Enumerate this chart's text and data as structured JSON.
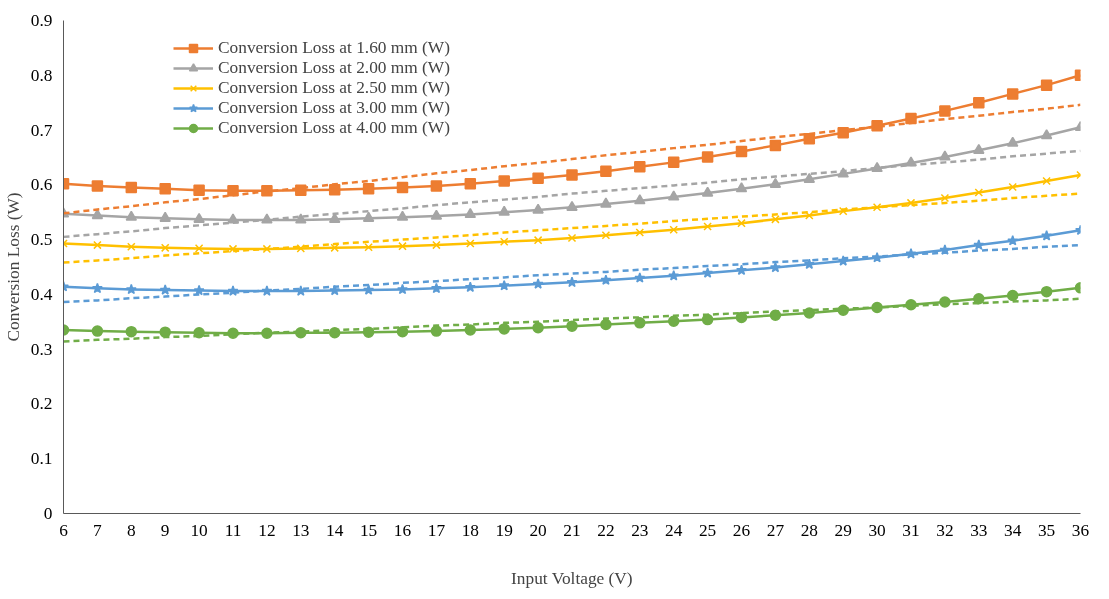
{
  "chart_data": {
    "type": "line",
    "xlabel": "Input Voltage (V)",
    "ylabel": "Conversion Loss (W)",
    "x": [
      6,
      7,
      8,
      9,
      10,
      11,
      12,
      13,
      14,
      15,
      16,
      17,
      18,
      19,
      20,
      21,
      22,
      23,
      24,
      25,
      26,
      27,
      28,
      29,
      30,
      31,
      32,
      33,
      34,
      35,
      36
    ],
    "xlim": [
      6,
      36
    ],
    "xticks": [
      6,
      7,
      8,
      9,
      10,
      11,
      12,
      13,
      14,
      15,
      16,
      17,
      18,
      19,
      20,
      21,
      22,
      23,
      24,
      25,
      26,
      27,
      28,
      29,
      30,
      31,
      32,
      33,
      34,
      35,
      36
    ],
    "ylim": [
      0,
      0.9
    ],
    "yticks": [
      0,
      0.1,
      0.2,
      0.3,
      0.4,
      0.5,
      0.6,
      0.7,
      0.8,
      0.9
    ],
    "grid": false,
    "legend": "top left",
    "series": [
      {
        "name": "Conversion Loss at 1.60 mm (W)",
        "color": "#ed7d31",
        "marker": "square",
        "line_style": "solid",
        "values": [
          0.602,
          0.598,
          0.595,
          0.593,
          0.59,
          0.589,
          0.589,
          0.59,
          0.591,
          0.593,
          0.595,
          0.598,
          0.602,
          0.607,
          0.612,
          0.618,
          0.625,
          0.633,
          0.641,
          0.651,
          0.661,
          0.672,
          0.684,
          0.695,
          0.708,
          0.721,
          0.735,
          0.75,
          0.766,
          0.782,
          0.8
        ]
      },
      {
        "name": "Conversion Loss at 2.00 mm (W)",
        "color": "#a5a5a5",
        "marker": "triangle",
        "line_style": "solid",
        "values": [
          0.547,
          0.544,
          0.541,
          0.539,
          0.537,
          0.536,
          0.536,
          0.536,
          0.537,
          0.539,
          0.541,
          0.543,
          0.546,
          0.55,
          0.554,
          0.559,
          0.565,
          0.571,
          0.578,
          0.585,
          0.593,
          0.601,
          0.61,
          0.62,
          0.63,
          0.64,
          0.651,
          0.663,
          0.676,
          0.69,
          0.705
        ]
      },
      {
        "name": "Conversion Loss at 2.50 mm (W)",
        "color": "#ffc000",
        "marker": "cross",
        "line_style": "solid",
        "values": [
          0.493,
          0.49,
          0.487,
          0.485,
          0.484,
          0.483,
          0.483,
          0.484,
          0.485,
          0.486,
          0.488,
          0.49,
          0.493,
          0.496,
          0.499,
          0.503,
          0.508,
          0.513,
          0.518,
          0.524,
          0.53,
          0.537,
          0.544,
          0.552,
          0.559,
          0.567,
          0.576,
          0.586,
          0.596,
          0.607,
          0.618
        ]
      },
      {
        "name": "Conversion Loss at 3.00 mm (W)",
        "color": "#5b9bd5",
        "marker": "star",
        "line_style": "solid",
        "values": [
          0.414,
          0.411,
          0.409,
          0.408,
          0.407,
          0.406,
          0.406,
          0.406,
          0.407,
          0.408,
          0.409,
          0.411,
          0.413,
          0.416,
          0.419,
          0.422,
          0.426,
          0.43,
          0.434,
          0.439,
          0.444,
          0.449,
          0.455,
          0.461,
          0.467,
          0.474,
          0.481,
          0.49,
          0.498,
          0.507,
          0.517
        ]
      },
      {
        "name": "Conversion Loss at 4.00 mm (W)",
        "color": "#70ad47",
        "marker": "circle",
        "line_style": "solid",
        "values": [
          0.335,
          0.333,
          0.332,
          0.331,
          0.33,
          0.329,
          0.329,
          0.33,
          0.33,
          0.331,
          0.332,
          0.333,
          0.335,
          0.337,
          0.339,
          0.342,
          0.345,
          0.348,
          0.351,
          0.354,
          0.358,
          0.362,
          0.366,
          0.371,
          0.376,
          0.381,
          0.386,
          0.392,
          0.398,
          0.405,
          0.412
        ]
      },
      {
        "color": "#ed7d31",
        "marker": "none",
        "line_style": "dashed",
        "values": [
          0.548,
          0.555,
          0.561,
          0.568,
          0.574,
          0.581,
          0.588,
          0.594,
          0.601,
          0.607,
          0.614,
          0.621,
          0.627,
          0.634,
          0.64,
          0.647,
          0.654,
          0.66,
          0.667,
          0.673,
          0.68,
          0.687,
          0.693,
          0.7,
          0.706,
          0.713,
          0.72,
          0.726,
          0.733,
          0.739,
          0.746
        ]
      },
      {
        "color": "#a5a5a5",
        "marker": "none",
        "line_style": "dashed",
        "values": [
          0.505,
          0.51,
          0.515,
          0.521,
          0.526,
          0.531,
          0.536,
          0.542,
          0.547,
          0.552,
          0.557,
          0.563,
          0.568,
          0.573,
          0.578,
          0.584,
          0.589,
          0.594,
          0.599,
          0.604,
          0.61,
          0.615,
          0.62,
          0.625,
          0.631,
          0.636,
          0.641,
          0.646,
          0.652,
          0.657,
          0.662
        ]
      },
      {
        "color": "#ffc000",
        "marker": "none",
        "line_style": "dashed",
        "values": [
          0.458,
          0.462,
          0.466,
          0.471,
          0.475,
          0.479,
          0.483,
          0.487,
          0.492,
          0.496,
          0.5,
          0.504,
          0.508,
          0.513,
          0.517,
          0.521,
          0.525,
          0.529,
          0.534,
          0.538,
          0.542,
          0.546,
          0.55,
          0.555,
          0.559,
          0.563,
          0.567,
          0.571,
          0.576,
          0.58,
          0.584
        ]
      },
      {
        "color": "#5b9bd5",
        "marker": "none",
        "line_style": "dashed",
        "values": [
          0.386,
          0.389,
          0.393,
          0.396,
          0.4,
          0.403,
          0.407,
          0.41,
          0.414,
          0.417,
          0.421,
          0.424,
          0.428,
          0.431,
          0.435,
          0.438,
          0.441,
          0.445,
          0.448,
          0.452,
          0.455,
          0.459,
          0.462,
          0.466,
          0.469,
          0.473,
          0.476,
          0.48,
          0.483,
          0.487,
          0.49
        ]
      },
      {
        "color": "#70ad47",
        "marker": "none",
        "line_style": "dashed",
        "values": [
          0.314,
          0.317,
          0.319,
          0.322,
          0.324,
          0.327,
          0.33,
          0.332,
          0.335,
          0.337,
          0.34,
          0.343,
          0.345,
          0.348,
          0.35,
          0.353,
          0.356,
          0.358,
          0.361,
          0.363,
          0.366,
          0.369,
          0.371,
          0.374,
          0.376,
          0.379,
          0.382,
          0.384,
          0.387,
          0.389,
          0.392
        ]
      }
    ]
  }
}
